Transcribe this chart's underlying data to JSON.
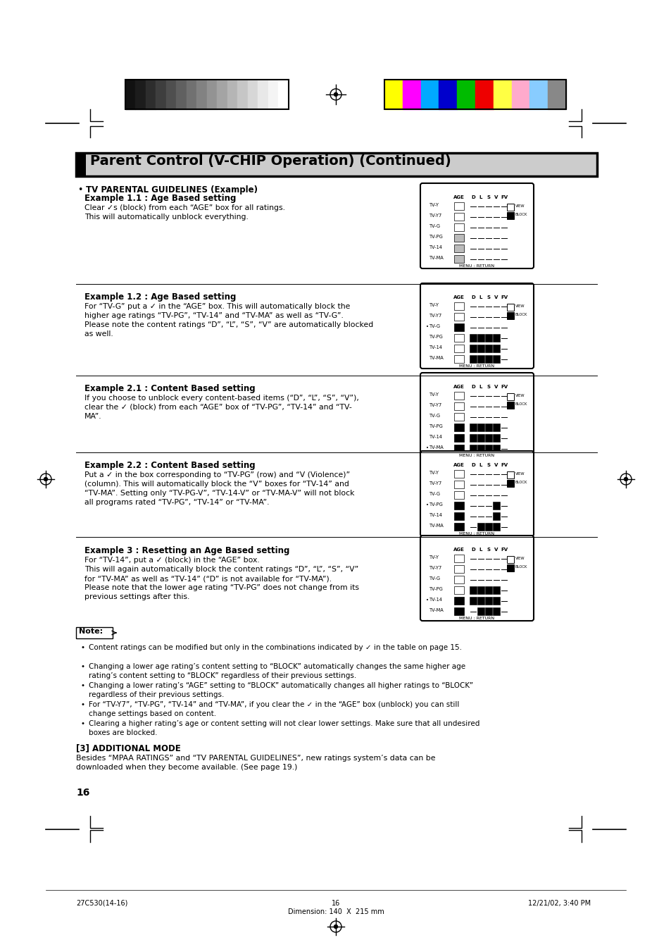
{
  "page_bg": "#ffffff",
  "title_text": "Parent Control (V-CHIP Operation) (Continued)",
  "grayscale_colors": [
    "#111111",
    "#1c1c1c",
    "#2d2d2d",
    "#3e3e3e",
    "#4f4f4f",
    "#606060",
    "#717171",
    "#828282",
    "#939393",
    "#a4a4a4",
    "#b5b5b5",
    "#c6c6c6",
    "#d7d7d7",
    "#e8e8e8",
    "#f4f4f4",
    "#ffffff"
  ],
  "color_bars": [
    "#ffff00",
    "#ff00ff",
    "#00aaff",
    "#0000cc",
    "#00bb00",
    "#ee0000",
    "#ffff44",
    "#ffaacc",
    "#88ccff",
    "#888888"
  ],
  "section_header": "TV PARENTAL GUIDELINES (Example)",
  "examples": [
    {
      "title": "Example 1.1 : Age Based setting",
      "body_lines": [
        "Clear ✓s (block) from each “AGE” box for all ratings.",
        "This will automatically unblock everything."
      ]
    },
    {
      "title": "Example 1.2 : Age Based setting",
      "body_lines": [
        "For “TV-G” put a ✓ in the “AGE” box. This will automatically block the",
        "higher age ratings “TV-PG”, “TV-14” and “TV-MA” as well as “TV-G”.",
        "Please note the content ratings “D”, “L”, “S”, “V” are automatically blocked",
        "as well."
      ]
    },
    {
      "title": "Example 2.1 : Content Based setting",
      "body_lines": [
        "If you choose to unblock every content-based items (“D”, “L”, “S”, “V”),",
        "clear the ✓ (block) from each “AGE” box of “TV-PG”, “TV-14” and “TV-",
        "MA”."
      ]
    },
    {
      "title": "Example 2.2 : Content Based setting",
      "body_lines": [
        "Put a ✓ in the box corresponding to “TV-PG” (row) and “V (Violence)”",
        "(column). This will automatically block the “V” boxes for “TV-14” and",
        "“TV-MA”. Setting only “TV-PG-V”, “TV-14-V” or “TV-MA-V” will not block",
        "all programs rated “TV-PG”, “TV-14” or “TV-MA”."
      ]
    },
    {
      "title": "Example 3 : Resetting an Age Based setting",
      "body_lines": [
        "For “TV-14”, put a ✓ (block) in the “AGE” box.",
        "This will again automatically block the content ratings “D”, “L”, “S”, “V”",
        "for “TV-MA” as well as “TV-14” (“D” is not available for “TV-MA”).",
        "Please note that the lower age rating “TV-PG” does not change from its",
        "previous settings after this."
      ]
    }
  ],
  "note_items": [
    "Content ratings can be modified but only in the combinations indicated by ✓ in the table on page 15.",
    "Changing a lower age rating’s content setting to “BLOCK” automatically changes the same higher age\nrating’s content setting to “BLOCK” regardless of their previous settings.",
    "Changing a lower rating’s “AGE” setting to “BLOCK” automatically changes all higher ratings to “BLOCK”\nregardless of their previous settings.",
    "For “TV-Y7”, “TV-PG”, “TV-14” and “TV-MA”, if you clear the ✓ in the “AGE” box (unblock) you can still\nchange settings based on content.",
    "Clearing a higher rating’s age or content setting will not clear lower settings. Make sure that all undesired\nboxes are blocked."
  ],
  "additional_mode_title": "[3] ADDITIONAL MODE",
  "additional_mode_body": "Besides “MPAA RATINGS” and “TV PARENTAL GUIDELINES”, new ratings system’s data can be\ndownloaded when they become available. (See page 19.)",
  "page_number": "16",
  "footer_left": "27C530(14-16)",
  "footer_center": "16",
  "footer_right": "12/21/02, 3:40 PM",
  "footer_dim": "Dimension: 140  X  215 mm"
}
